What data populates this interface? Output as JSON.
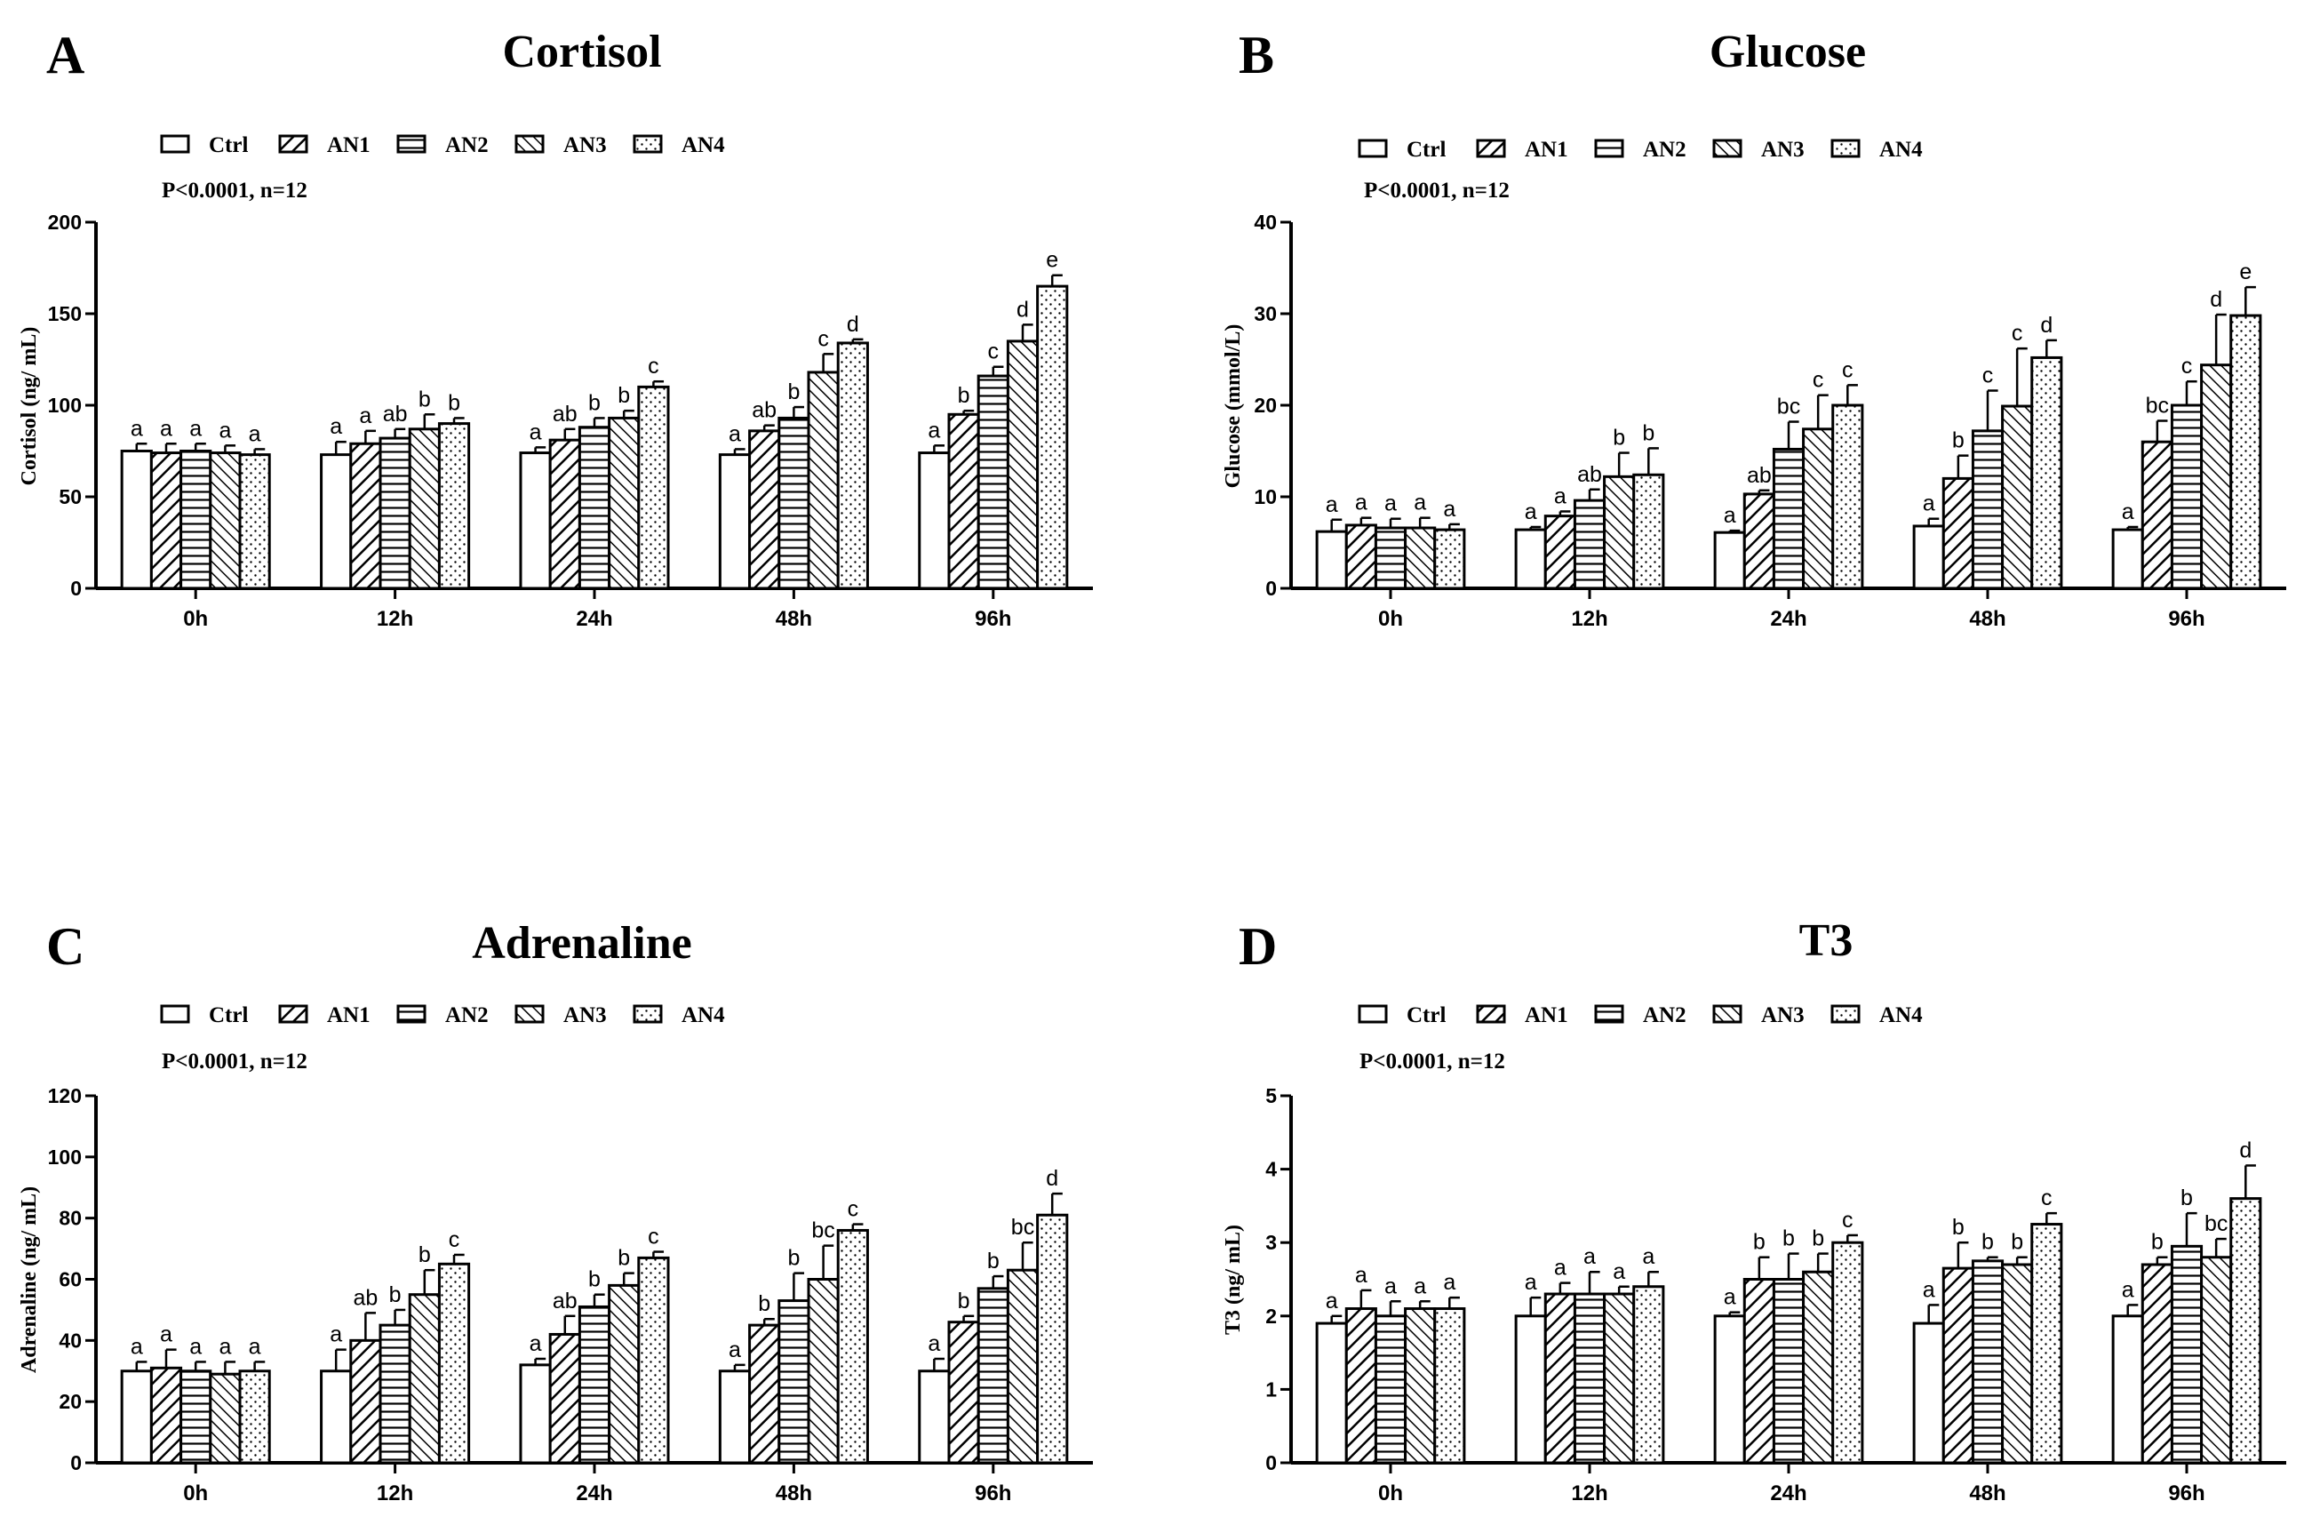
{
  "chart_data": [
    {
      "panel": "A",
      "type": "bar",
      "title": "Cortisol",
      "ylabel": "Cortisol (ng/ mL)",
      "xlabel": "",
      "annotation": "P<0.0001, n=12",
      "ylim": [
        0,
        200
      ],
      "yticks": [
        0,
        50,
        100,
        150,
        200
      ],
      "categories": [
        "0h",
        "12h",
        "24h",
        "48h",
        "96h"
      ],
      "legend": [
        "Ctrl",
        "AN1",
        "AN2",
        "AN3",
        "AN4"
      ],
      "series": [
        {
          "name": "Ctrl",
          "values": [
            75,
            73,
            74,
            73,
            74
          ],
          "errors": [
            4,
            7,
            3,
            3,
            4
          ],
          "labels": [
            "a",
            "a",
            "a",
            "a",
            "a"
          ]
        },
        {
          "name": "AN1",
          "values": [
            74,
            79,
            81,
            86,
            95
          ],
          "errors": [
            5,
            7,
            6,
            3,
            2
          ],
          "labels": [
            "a",
            "a",
            "ab",
            "ab",
            "b"
          ]
        },
        {
          "name": "AN2",
          "values": [
            75,
            82,
            88,
            93,
            116
          ],
          "errors": [
            4,
            5,
            5,
            6,
            5
          ],
          "labels": [
            "a",
            "ab",
            "b",
            "b",
            "c"
          ]
        },
        {
          "name": "AN3",
          "values": [
            74,
            87,
            93,
            118,
            135
          ],
          "errors": [
            4,
            8,
            4,
            10,
            9
          ],
          "labels": [
            "a",
            "b",
            "b",
            "c",
            "d"
          ]
        },
        {
          "name": "AN4",
          "values": [
            73,
            90,
            110,
            134,
            165
          ],
          "errors": [
            3,
            3,
            3,
            2,
            6
          ],
          "labels": [
            "a",
            "b",
            "c",
            "d",
            "e"
          ]
        }
      ]
    },
    {
      "panel": "B",
      "type": "bar",
      "title": "Glucose",
      "ylabel": "Glucose (mmol/L)",
      "xlabel": "",
      "annotation": "P<0.0001, n=12",
      "ylim": [
        0,
        40
      ],
      "yticks": [
        0,
        10,
        20,
        30,
        40
      ],
      "categories": [
        "0h",
        "12h",
        "24h",
        "48h",
        "96h"
      ],
      "legend": [
        "Ctrl",
        "AN1",
        "AN2",
        "AN3",
        "AN4"
      ],
      "series": [
        {
          "name": "Ctrl",
          "values": [
            6.2,
            6.4,
            6.1,
            6.8,
            6.4
          ],
          "errors": [
            1.3,
            0.3,
            0.2,
            0.8,
            0.3
          ],
          "labels": [
            "a",
            "a",
            "a",
            "a",
            "a"
          ]
        },
        {
          "name": "AN1",
          "values": [
            6.9,
            7.9,
            10.3,
            12.0,
            16.0
          ],
          "errors": [
            0.8,
            0.5,
            0.4,
            2.5,
            2.3
          ],
          "labels": [
            "a",
            "a",
            "ab",
            "b",
            "bc"
          ]
        },
        {
          "name": "AN2",
          "values": [
            6.6,
            9.6,
            15.2,
            17.2,
            20.0
          ],
          "errors": [
            1.0,
            1.2,
            3.0,
            4.4,
            2.6
          ],
          "labels": [
            "a",
            "ab",
            "bc",
            "c",
            "c"
          ]
        },
        {
          "name": "AN3",
          "values": [
            6.6,
            12.2,
            17.4,
            19.9,
            24.4
          ],
          "errors": [
            1.1,
            2.6,
            3.7,
            6.3,
            5.5
          ],
          "labels": [
            "a",
            "b",
            "c",
            "c",
            "d"
          ]
        },
        {
          "name": "AN4",
          "values": [
            6.4,
            12.4,
            20.0,
            25.2,
            29.8
          ],
          "errors": [
            0.6,
            2.9,
            2.2,
            1.9,
            3.1
          ],
          "labels": [
            "a",
            "b",
            "c",
            "d",
            "e"
          ]
        }
      ]
    },
    {
      "panel": "C",
      "type": "bar",
      "title": "Adrenaline",
      "ylabel": "Adrenaline (ng/ mL)",
      "xlabel": "",
      "annotation": "P<0.0001, n=12",
      "ylim": [
        0,
        120
      ],
      "yticks": [
        0,
        20,
        40,
        60,
        80,
        100,
        120
      ],
      "categories": [
        "0h",
        "12h",
        "24h",
        "48h",
        "96h"
      ],
      "legend": [
        "Ctrl",
        "AN1",
        "AN2",
        "AN3",
        "AN4"
      ],
      "series": [
        {
          "name": "Ctrl",
          "values": [
            30,
            30,
            32,
            30,
            30
          ],
          "errors": [
            3,
            7,
            2,
            2,
            4
          ],
          "labels": [
            "a",
            "a",
            "a",
            "a",
            "a"
          ]
        },
        {
          "name": "AN1",
          "values": [
            31,
            40,
            42,
            45,
            46
          ],
          "errors": [
            6,
            9,
            6,
            2,
            2
          ],
          "labels": [
            "a",
            "ab",
            "ab",
            "b",
            "b"
          ]
        },
        {
          "name": "AN2",
          "values": [
            30,
            45,
            51,
            53,
            57
          ],
          "errors": [
            3,
            5,
            4,
            9,
            4
          ],
          "labels": [
            "a",
            "b",
            "b",
            "b",
            "b"
          ]
        },
        {
          "name": "AN3",
          "values": [
            29,
            55,
            58,
            60,
            63
          ],
          "errors": [
            4,
            8,
            4,
            11,
            9
          ],
          "labels": [
            "a",
            "b",
            "b",
            "bc",
            "bc"
          ]
        },
        {
          "name": "AN4",
          "values": [
            30,
            65,
            67,
            76,
            81
          ],
          "errors": [
            3,
            3,
            2,
            2,
            7
          ],
          "labels": [
            "a",
            "c",
            "c",
            "c",
            "d"
          ]
        }
      ]
    },
    {
      "panel": "D",
      "type": "bar",
      "title": "T3",
      "ylabel": "T3 (ng/ mL)",
      "xlabel": "",
      "annotation": "P<0.0001, n=12",
      "ylim": [
        0,
        5
      ],
      "yticks": [
        0,
        1,
        2,
        3,
        4,
        5
      ],
      "categories": [
        "0h",
        "12h",
        "24h",
        "48h",
        "96h"
      ],
      "legend": [
        "Ctrl",
        "AN1",
        "AN2",
        "AN3",
        "AN4"
      ],
      "series": [
        {
          "name": "Ctrl",
          "values": [
            1.9,
            2.0,
            2.0,
            1.9,
            2.0
          ],
          "errors": [
            0.1,
            0.25,
            0.05,
            0.25,
            0.15
          ],
          "labels": [
            "a",
            "a",
            "a",
            "a",
            "a"
          ]
        },
        {
          "name": "AN1",
          "values": [
            2.1,
            2.3,
            2.5,
            2.65,
            2.7
          ],
          "errors": [
            0.25,
            0.15,
            0.3,
            0.35,
            0.1
          ],
          "labels": [
            "a",
            "a",
            "b",
            "b",
            "b"
          ]
        },
        {
          "name": "AN2",
          "values": [
            2.0,
            2.3,
            2.5,
            2.75,
            2.95
          ],
          "errors": [
            0.2,
            0.3,
            0.35,
            0.05,
            0.45
          ],
          "labels": [
            "a",
            "a",
            "b",
            "b",
            "b"
          ]
        },
        {
          "name": "AN3",
          "values": [
            2.1,
            2.3,
            2.6,
            2.7,
            2.8
          ],
          "errors": [
            0.1,
            0.1,
            0.25,
            0.1,
            0.25
          ],
          "labels": [
            "a",
            "a",
            "b",
            "b",
            "bc"
          ]
        },
        {
          "name": "AN4",
          "values": [
            2.1,
            2.4,
            3.0,
            3.25,
            3.6
          ],
          "errors": [
            0.15,
            0.2,
            0.1,
            0.15,
            0.45
          ],
          "labels": [
            "a",
            "a",
            "c",
            "c",
            "d"
          ]
        }
      ]
    }
  ],
  "colors": {
    "bar_fill": "#ffffff",
    "stroke": "#000000",
    "background": "#ffffff"
  },
  "pattern_names": [
    "none",
    "diagonal-up",
    "horizontal",
    "diagonal-down",
    "dots"
  ]
}
